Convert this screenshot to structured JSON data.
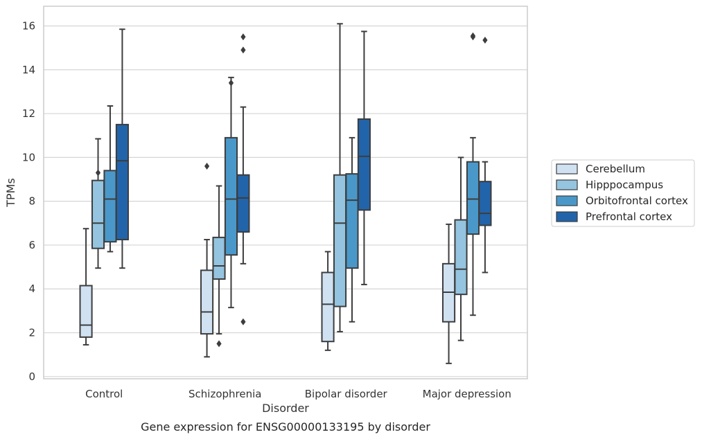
{
  "caption": "Gene expression for ENSG00000133195 by disorder",
  "chart_data": {
    "type": "boxplot",
    "xlabel": "Disorder",
    "ylabel": "TPMs",
    "ylim": [
      -0.1,
      16.9
    ],
    "yticks": [
      0,
      2,
      4,
      6,
      8,
      10,
      12,
      14,
      16
    ],
    "grid": "horizontal",
    "legend_position": "right",
    "categories": [
      "Control",
      "Schizophrenia",
      "Bipolar disorder",
      "Major depression"
    ],
    "series": [
      {
        "name": "Cerebellum",
        "color": "#d0e1f2",
        "boxes": [
          {
            "whislo": 1.45,
            "q1": 1.8,
            "med": 2.35,
            "q3": 4.15,
            "whishi": 6.75,
            "fliers": []
          },
          {
            "whislo": 0.9,
            "q1": 1.95,
            "med": 2.95,
            "q3": 4.85,
            "whishi": 6.25,
            "fliers": [
              9.6
            ]
          },
          {
            "whislo": 1.2,
            "q1": 1.6,
            "med": 3.3,
            "q3": 4.75,
            "whishi": 5.7,
            "fliers": []
          },
          {
            "whislo": 0.6,
            "q1": 2.5,
            "med": 3.85,
            "q3": 5.15,
            "whishi": 6.95,
            "fliers": []
          }
        ]
      },
      {
        "name": "Hipppocampus",
        "color": "#94c4df",
        "boxes": [
          {
            "whislo": 4.95,
            "q1": 5.85,
            "med": 7.0,
            "q3": 8.95,
            "whishi": 10.85,
            "fliers": [
              9.3
            ]
          },
          {
            "whislo": 1.95,
            "q1": 4.45,
            "med": 5.05,
            "q3": 6.35,
            "whishi": 8.7,
            "fliers": [
              1.5
            ]
          },
          {
            "whislo": 2.05,
            "q1": 3.2,
            "med": 7.0,
            "q3": 9.2,
            "whishi": 16.1,
            "fliers": []
          },
          {
            "whislo": 1.65,
            "q1": 3.75,
            "med": 4.9,
            "q3": 7.15,
            "whishi": 10.0,
            "fliers": []
          }
        ]
      },
      {
        "name": "Orbitofrontal cortex",
        "color": "#4a98c9",
        "boxes": [
          {
            "whislo": 5.7,
            "q1": 6.15,
            "med": 8.1,
            "q3": 9.4,
            "whishi": 12.35,
            "fliers": []
          },
          {
            "whislo": 3.15,
            "q1": 5.55,
            "med": 8.1,
            "q3": 10.9,
            "whishi": 13.65,
            "fliers": [
              13.4
            ]
          },
          {
            "whislo": 2.5,
            "q1": 4.95,
            "med": 8.05,
            "q3": 9.25,
            "whishi": 10.9,
            "fliers": []
          },
          {
            "whislo": 2.8,
            "q1": 6.5,
            "med": 8.1,
            "q3": 9.8,
            "whishi": 10.9,
            "fliers": [
              15.5,
              15.55
            ]
          }
        ]
      },
      {
        "name": "Prefrontal cortex",
        "color": "#2264aa",
        "boxes": [
          {
            "whislo": 4.95,
            "q1": 6.25,
            "med": 9.85,
            "q3": 11.5,
            "whishi": 15.85,
            "fliers": []
          },
          {
            "whislo": 5.15,
            "q1": 6.6,
            "med": 8.15,
            "q3": 9.2,
            "whishi": 12.3,
            "fliers": [
              2.5,
              14.9,
              15.5
            ]
          },
          {
            "whislo": 4.2,
            "q1": 7.6,
            "med": 10.05,
            "q3": 11.75,
            "whishi": 15.75,
            "fliers": []
          },
          {
            "whislo": 4.75,
            "q1": 6.9,
            "med": 7.45,
            "q3": 8.9,
            "whishi": 9.8,
            "fliers": [
              15.35
            ]
          }
        ]
      }
    ]
  }
}
